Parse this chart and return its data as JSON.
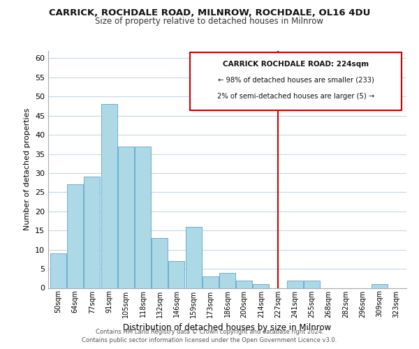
{
  "title": "CARRICK, ROCHDALE ROAD, MILNROW, ROCHDALE, OL16 4DU",
  "subtitle": "Size of property relative to detached houses in Milnrow",
  "xlabel": "Distribution of detached houses by size in Milnrow",
  "ylabel": "Number of detached properties",
  "bar_labels": [
    "50sqm",
    "64sqm",
    "77sqm",
    "91sqm",
    "105sqm",
    "118sqm",
    "132sqm",
    "146sqm",
    "159sqm",
    "173sqm",
    "186sqm",
    "200sqm",
    "214sqm",
    "227sqm",
    "241sqm",
    "255sqm",
    "268sqm",
    "282sqm",
    "296sqm",
    "309sqm",
    "323sqm"
  ],
  "bar_values": [
    9,
    27,
    29,
    48,
    37,
    37,
    13,
    7,
    16,
    3,
    4,
    2,
    1,
    0,
    2,
    2,
    0,
    0,
    0,
    1,
    0
  ],
  "bar_color": "#add8e6",
  "bar_edge_color": "#6ab0d4",
  "ylim": [
    0,
    62
  ],
  "yticks": [
    0,
    5,
    10,
    15,
    20,
    25,
    30,
    35,
    40,
    45,
    50,
    55,
    60
  ],
  "vline_x_index": 13,
  "vline_color": "#cc0000",
  "annotation_title": "CARRICK ROCHDALE ROAD: 224sqm",
  "annotation_line1": "← 98% of detached houses are smaller (233)",
  "annotation_line2": "2% of semi-detached houses are larger (5) →",
  "annotation_box_color": "#ffffff",
  "annotation_box_edge": "#cc0000",
  "footer1": "Contains HM Land Registry data © Crown copyright and database right 2024.",
  "footer2": "Contains public sector information licensed under the Open Government Licence v3.0.",
  "background_color": "#ffffff",
  "grid_color": "#c8d8e8"
}
